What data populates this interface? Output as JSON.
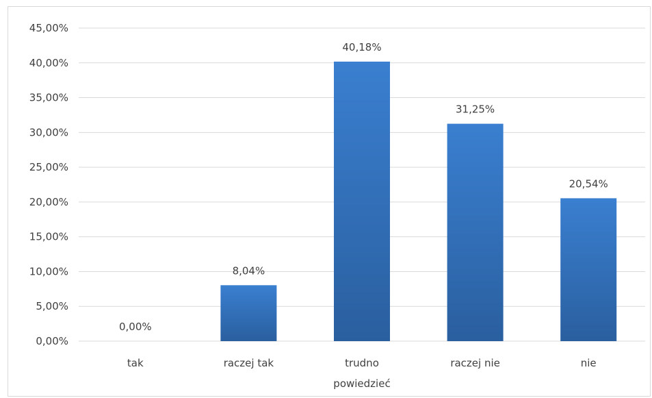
{
  "chart_data": {
    "type": "bar",
    "categories": [
      "tak",
      "raczej tak",
      "trudno powiedzieć",
      "raczej nie",
      "nie"
    ],
    "category_lines": [
      [
        "tak"
      ],
      [
        "raczej tak"
      ],
      [
        "trudno",
        "powiedzieć"
      ],
      [
        "raczej nie"
      ],
      [
        "nie"
      ]
    ],
    "values": [
      0.0,
      8.04,
      40.18,
      31.25,
      20.54
    ],
    "data_labels": [
      "0,00%",
      "8,04%",
      "40,18%",
      "31,25%",
      "20,54%"
    ],
    "ylim": [
      0,
      45
    ],
    "y_ticks": [
      0,
      5,
      10,
      15,
      20,
      25,
      30,
      35,
      40,
      45
    ],
    "y_tick_labels": [
      "0,00%",
      "5,00%",
      "10,00%",
      "15,00%",
      "20,00%",
      "25,00%",
      "30,00%",
      "35,00%",
      "40,00%",
      "45,00%"
    ],
    "grid": true,
    "bar_color_top": "#3a7fd0",
    "bar_color_bottom": "#2a5f9f",
    "grid_color": "#d9d9d9",
    "legend": "none"
  }
}
